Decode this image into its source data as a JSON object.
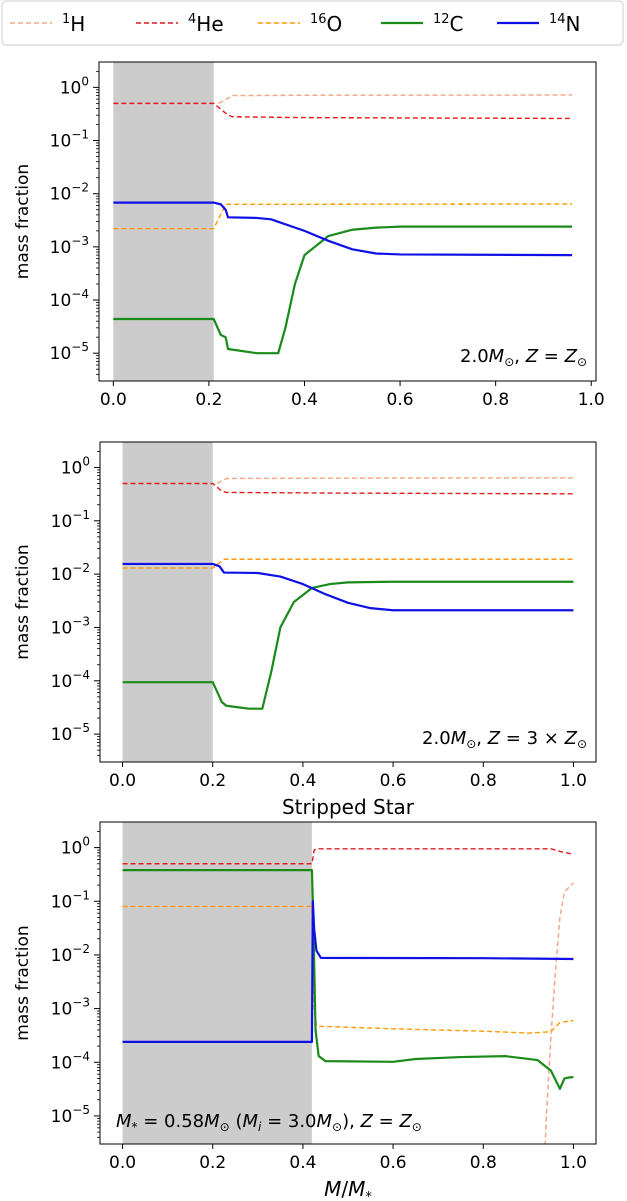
{
  "legend": {
    "placement": "top",
    "entries": [
      {
        "name": "1H",
        "mass_number": "1",
        "element": "H",
        "color": "#f4a582",
        "style": "dashed"
      },
      {
        "name": "4He",
        "mass_number": "4",
        "element": "He",
        "color": "#e31a1c",
        "style": "dashed"
      },
      {
        "name": "16O",
        "mass_number": "16",
        "element": "O",
        "color": "#ff9900",
        "style": "dashed"
      },
      {
        "name": "12C",
        "mass_number": "12",
        "element": "C",
        "color": "#1a8a1a",
        "style": "solid"
      },
      {
        "name": "14N",
        "mass_number": "14",
        "element": "N",
        "color": "#1010e6",
        "style": "solid"
      }
    ]
  },
  "chart_data": [
    {
      "type": "line",
      "title": "",
      "ylabel": "mass fraction",
      "xlabel": "",
      "yscale": "log",
      "xlim": [
        -0.03,
        1.01
      ],
      "ylim": [
        3e-06,
        3
      ],
      "xticks": [
        "0.0",
        "0.2",
        "0.4",
        "0.6",
        "0.8",
        "1.0"
      ],
      "yticks": [
        "10^0",
        "10^-1",
        "10^-2",
        "10^-3",
        "10^-4",
        "10^-5"
      ],
      "shaded_region": [
        0.0,
        0.21
      ],
      "annotation": "2.0M⊙, Z = Z⊙",
      "series": [
        {
          "name": "1H",
          "x": [
            0.22,
            0.25,
            0.4,
            0.96
          ],
          "y": [
            0.5,
            0.7,
            0.71,
            0.72
          ]
        },
        {
          "name": "4He",
          "x": [
            0.0,
            0.21,
            0.24,
            0.25,
            0.4,
            0.96
          ],
          "y": [
            0.5,
            0.5,
            0.3,
            0.28,
            0.27,
            0.26
          ]
        },
        {
          "name": "16O",
          "x": [
            0.0,
            0.21,
            0.235,
            0.96
          ],
          "y": [
            0.0022,
            0.0022,
            0.0063,
            0.0064
          ]
        },
        {
          "name": "12C",
          "x": [
            0.0,
            0.21,
            0.225,
            0.235,
            0.24,
            0.3,
            0.345,
            0.36,
            0.38,
            0.4,
            0.45,
            0.5,
            0.55,
            0.6,
            0.96
          ],
          "y": [
            4.4e-05,
            4.4e-05,
            2.2e-05,
            2e-05,
            1.2e-05,
            1e-05,
            1e-05,
            3e-05,
            0.0002,
            0.0007,
            0.0016,
            0.0021,
            0.0023,
            0.0024,
            0.0024
          ]
        },
        {
          "name": "14N",
          "x": [
            0.0,
            0.21,
            0.225,
            0.235,
            0.24,
            0.3,
            0.33,
            0.4,
            0.45,
            0.5,
            0.55,
            0.6,
            0.96
          ],
          "y": [
            0.0068,
            0.0068,
            0.0063,
            0.005,
            0.0036,
            0.0035,
            0.0033,
            0.002,
            0.0013,
            0.0009,
            0.00075,
            0.00072,
            0.0007
          ]
        }
      ]
    },
    {
      "type": "line",
      "title": "",
      "ylabel": "mass fraction",
      "xlabel": "",
      "yscale": "log",
      "xlim": [
        -0.05,
        1.05
      ],
      "ylim": [
        3e-06,
        3
      ],
      "xticks": [
        "0.0",
        "0.2",
        "0.4",
        "0.6",
        "0.8",
        "1.0"
      ],
      "yticks": [
        "10^0",
        "10^-1",
        "10^-2",
        "10^-3",
        "10^-4",
        "10^-5"
      ],
      "shaded_region": [
        0.0,
        0.2
      ],
      "annotation": "2.0M⊙, Z = 3 × Z⊙",
      "series": [
        {
          "name": "1H",
          "x": [
            0.21,
            0.23,
            0.5,
            1.0
          ],
          "y": [
            0.5,
            0.62,
            0.63,
            0.64
          ]
        },
        {
          "name": "4He",
          "x": [
            0.0,
            0.2,
            0.22,
            0.23,
            0.5,
            1.0
          ],
          "y": [
            0.5,
            0.5,
            0.36,
            0.34,
            0.33,
            0.32
          ]
        },
        {
          "name": "16O",
          "x": [
            0.0,
            0.2,
            0.225,
            1.0
          ],
          "y": [
            0.013,
            0.013,
            0.019,
            0.019
          ]
        },
        {
          "name": "12C",
          "x": [
            0.0,
            0.2,
            0.215,
            0.22,
            0.23,
            0.28,
            0.31,
            0.33,
            0.35,
            0.38,
            0.42,
            0.46,
            0.5,
            0.6,
            1.0
          ],
          "y": [
            9.4e-05,
            9.4e-05,
            5e-05,
            4e-05,
            3.4e-05,
            3e-05,
            3e-05,
            0.00015,
            0.001,
            0.003,
            0.0055,
            0.0065,
            0.007,
            0.0072,
            0.0072
          ]
        },
        {
          "name": "14N",
          "x": [
            0.0,
            0.2,
            0.215,
            0.225,
            0.3,
            0.35,
            0.4,
            0.45,
            0.5,
            0.55,
            0.6,
            1.0
          ],
          "y": [
            0.0155,
            0.0155,
            0.014,
            0.0107,
            0.0105,
            0.009,
            0.0065,
            0.0042,
            0.0029,
            0.0023,
            0.0021,
            0.0021
          ]
        }
      ]
    },
    {
      "type": "line",
      "title": "Stripped Star",
      "ylabel": "mass fraction",
      "xlabel": "M/M*",
      "yscale": "log",
      "xlim": [
        -0.05,
        1.05
      ],
      "ylim": [
        3e-06,
        3
      ],
      "xticks": [
        "0.0",
        "0.2",
        "0.4",
        "0.6",
        "0.8",
        "1.0"
      ],
      "yticks": [
        "10^0",
        "10^-1",
        "10^-2",
        "10^-3",
        "10^-4",
        "10^-5"
      ],
      "shaded_region": [
        0.0,
        0.42
      ],
      "annotation": "M* = 0.58M⊙ (Mi = 3.0M⊙), Z = Z⊙",
      "series": [
        {
          "name": "1H",
          "x": [
            0.935,
            0.94,
            0.95,
            0.96,
            0.97,
            0.98,
            1.0
          ],
          "y": [
            1e-06,
            1e-05,
            0.0003,
            0.005,
            0.05,
            0.15,
            0.22
          ]
        },
        {
          "name": "4He",
          "x": [
            0.0,
            0.42,
            0.425,
            0.43,
            0.8,
            0.95,
            0.97,
            1.0
          ],
          "y": [
            0.5,
            0.5,
            0.9,
            0.95,
            0.95,
            0.95,
            0.85,
            0.75
          ]
        },
        {
          "name": "16O",
          "x": [
            0.0,
            0.42,
            0.425,
            0.43,
            0.6,
            0.8,
            0.9,
            0.95,
            0.97,
            1.0
          ],
          "y": [
            0.08,
            0.08,
            0.001,
            0.00047,
            0.00042,
            0.00038,
            0.00035,
            0.00037,
            0.00055,
            0.0006
          ]
        },
        {
          "name": "12C",
          "x": [
            0.0,
            0.42,
            0.423,
            0.428,
            0.435,
            0.45,
            0.6,
            0.65,
            0.75,
            0.85,
            0.92,
            0.95,
            0.97,
            0.98,
            0.99,
            1.0
          ],
          "y": [
            0.38,
            0.38,
            0.05,
            0.0004,
            0.00013,
            0.000105,
            0.000102,
            0.000115,
            0.000125,
            0.00013,
            0.00011,
            7e-05,
            3.2e-05,
            5e-05,
            5.2e-05,
            5.3e-05
          ]
        },
        {
          "name": "14N",
          "x": [
            0.0,
            0.42,
            0.422,
            0.425,
            0.43,
            0.44,
            0.8,
            1.0
          ],
          "y": [
            0.00024,
            0.00024,
            0.1,
            0.03,
            0.012,
            0.0088,
            0.0087,
            0.0084
          ]
        }
      ]
    }
  ]
}
